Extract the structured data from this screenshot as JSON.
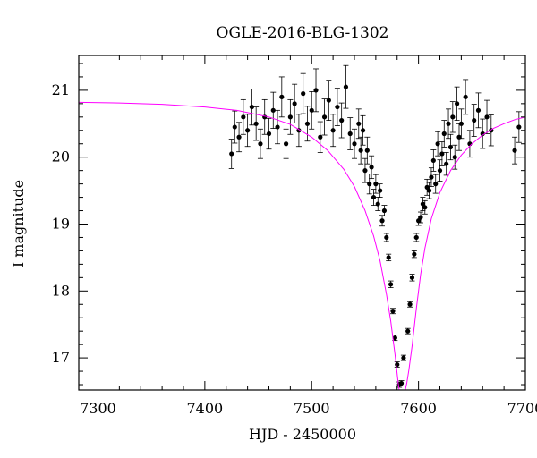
{
  "chart_data": {
    "type": "scatter",
    "title": "OGLE-2016-BLG-1302",
    "xlabel": "HJD - 2450000",
    "ylabel": "I magnitude",
    "xlim": [
      7282,
      7700
    ],
    "ylim": [
      21.52,
      16.52
    ],
    "y_inverted": true,
    "grid": false,
    "colors": {
      "data": "#000000",
      "model": "#ff00ff"
    },
    "x_ticks": [
      {
        "value": 7300,
        "label": "7300"
      },
      {
        "value": 7400,
        "label": "7400"
      },
      {
        "value": 7500,
        "label": "7500"
      },
      {
        "value": 7600,
        "label": "7600"
      },
      {
        "value": 7700,
        "label": "7700"
      }
    ],
    "y_ticks": [
      {
        "value": 17,
        "label": "17"
      },
      {
        "value": 18,
        "label": "18"
      },
      {
        "value": 19,
        "label": "19"
      },
      {
        "value": 20,
        "label": "20"
      },
      {
        "value": 21,
        "label": "21"
      }
    ],
    "series": [
      {
        "kind": "points_with_errorbars",
        "x": [
          7425,
          7428,
          7432,
          7436,
          7440,
          7444,
          7448,
          7452,
          7456,
          7460,
          7464,
          7468,
          7472,
          7476,
          7480,
          7484,
          7488,
          7492,
          7496,
          7500,
          7504,
          7508,
          7512,
          7516,
          7520,
          7524,
          7528,
          7532,
          7536,
          7540,
          7544,
          7546,
          7548,
          7550,
          7552,
          7554,
          7556,
          7558,
          7560,
          7562,
          7564,
          7566,
          7568,
          7570,
          7572,
          7574,
          7576,
          7578,
          7580,
          7582,
          7584,
          7586,
          7590,
          7592,
          7594,
          7596,
          7598,
          7600,
          7602,
          7604,
          7606,
          7608,
          7610,
          7612,
          7614,
          7616,
          7618,
          7620,
          7622,
          7624,
          7626,
          7628,
          7630,
          7632,
          7634,
          7636,
          7638,
          7640,
          7644,
          7648,
          7652,
          7656,
          7660,
          7664,
          7668,
          7690,
          7694
        ],
        "y": [
          20.05,
          20.45,
          20.3,
          20.6,
          20.4,
          20.75,
          20.5,
          20.2,
          20.6,
          20.35,
          20.7,
          20.45,
          20.9,
          20.2,
          20.6,
          20.8,
          20.4,
          20.95,
          20.5,
          20.7,
          21.0,
          20.3,
          20.6,
          20.85,
          20.4,
          20.75,
          20.55,
          21.05,
          20.35,
          20.2,
          20.5,
          20.1,
          20.4,
          19.8,
          20.1,
          19.6,
          19.85,
          19.4,
          19.6,
          19.3,
          19.5,
          19.05,
          19.2,
          18.8,
          18.5,
          18.1,
          17.7,
          17.3,
          16.9,
          16.6,
          16.62,
          17.0,
          17.4,
          17.8,
          18.2,
          18.55,
          18.8,
          19.05,
          19.1,
          19.3,
          19.25,
          19.55,
          19.5,
          19.7,
          19.95,
          19.6,
          20.2,
          19.8,
          20.05,
          20.35,
          19.9,
          20.5,
          20.15,
          20.6,
          20.0,
          20.8,
          20.3,
          20.5,
          20.9,
          20.2,
          20.55,
          20.7,
          20.35,
          20.6,
          20.4,
          20.1,
          20.45
        ],
        "yerr": [
          0.22,
          0.24,
          0.22,
          0.26,
          0.24,
          0.27,
          0.25,
          0.22,
          0.26,
          0.23,
          0.27,
          0.25,
          0.3,
          0.22,
          0.26,
          0.29,
          0.24,
          0.3,
          0.26,
          0.28,
          0.32,
          0.23,
          0.27,
          0.3,
          0.24,
          0.28,
          0.26,
          0.32,
          0.24,
          0.22,
          0.22,
          0.2,
          0.22,
          0.18,
          0.2,
          0.15,
          0.17,
          0.12,
          0.14,
          0.1,
          0.1,
          0.08,
          0.08,
          0.06,
          0.05,
          0.05,
          0.04,
          0.04,
          0.04,
          0.04,
          0.04,
          0.04,
          0.04,
          0.04,
          0.05,
          0.05,
          0.06,
          0.07,
          0.08,
          0.1,
          0.1,
          0.12,
          0.12,
          0.14,
          0.16,
          0.14,
          0.18,
          0.16,
          0.18,
          0.2,
          0.17,
          0.22,
          0.19,
          0.23,
          0.18,
          0.25,
          0.2,
          0.22,
          0.26,
          0.2,
          0.24,
          0.26,
          0.22,
          0.25,
          0.23,
          0.2,
          0.23
        ]
      },
      {
        "kind": "model_curve",
        "x": [
          7282,
          7320,
          7360,
          7400,
          7430,
          7460,
          7480,
          7500,
          7515,
          7530,
          7540,
          7550,
          7558,
          7564,
          7570,
          7574,
          7578,
          7581,
          7583,
          7585,
          7587,
          7589,
          7591,
          7594,
          7598,
          7602,
          7606,
          7612,
          7620,
          7630,
          7640,
          7650,
          7660,
          7670,
          7680,
          7690,
          7700
        ],
        "y": [
          20.82,
          20.81,
          20.79,
          20.75,
          20.7,
          20.6,
          20.49,
          20.3,
          20.1,
          19.82,
          19.56,
          19.2,
          18.82,
          18.45,
          17.95,
          17.55,
          17.05,
          16.62,
          16.4,
          16.4,
          16.48,
          16.62,
          16.82,
          17.18,
          17.74,
          18.25,
          18.64,
          19.08,
          19.47,
          19.8,
          20.03,
          20.2,
          20.33,
          20.43,
          20.5,
          20.56,
          20.6
        ]
      }
    ]
  }
}
